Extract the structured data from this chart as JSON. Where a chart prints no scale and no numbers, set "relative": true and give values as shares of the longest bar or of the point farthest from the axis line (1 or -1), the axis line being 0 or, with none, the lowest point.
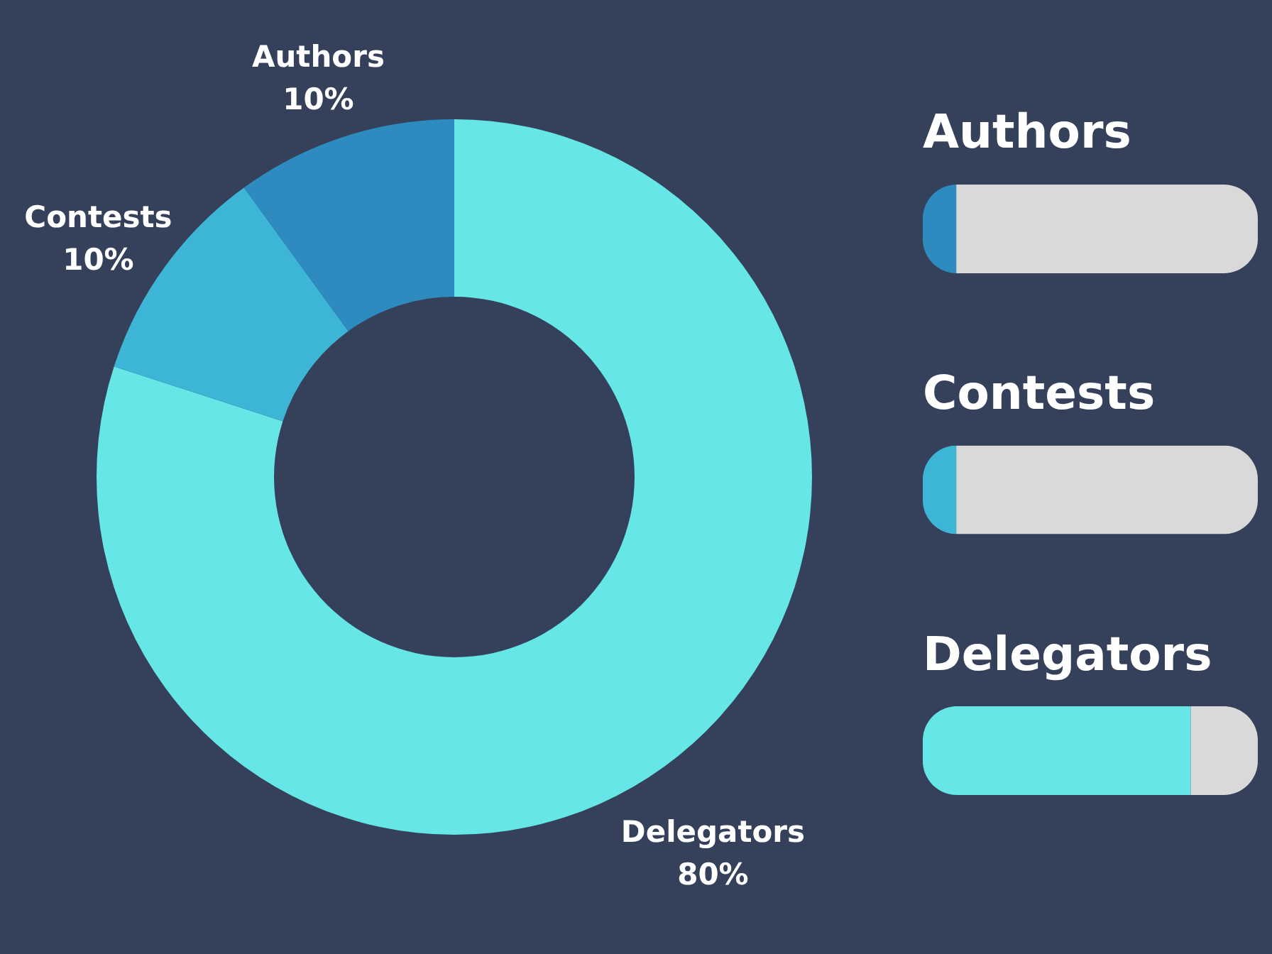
{
  "chart_data": [
    {
      "type": "donut",
      "categories": [
        "Delegators",
        "Contests",
        "Authors"
      ],
      "values": [
        80,
        10,
        10
      ],
      "colors": [
        "#67e6e8",
        "#3db5d6",
        "#2e8bbf"
      ],
      "value_labels": [
        "80%",
        "10%",
        "10%"
      ],
      "legend": false
    },
    {
      "type": "bar",
      "orientation": "horizontal",
      "stacked": true,
      "relative": true,
      "categories": [
        "Authors",
        "Contests",
        "Delegators"
      ],
      "series": [
        {
          "colors": [
            "#2e8bbf",
            "#3db5d6",
            "#67e6e8"
          ],
          "values": [
            0.1,
            0.1,
            0.8
          ]
        },
        {
          "color": "#d9d9d9",
          "values": [
            0.9,
            0.9,
            0.2
          ]
        }
      ],
      "legend": false
    }
  ]
}
